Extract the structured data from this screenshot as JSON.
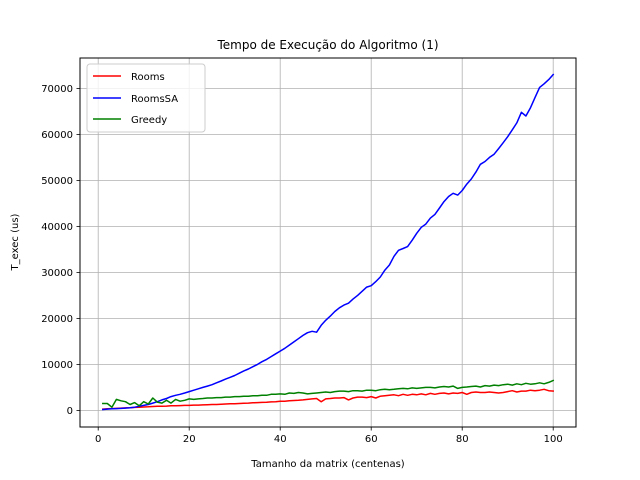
{
  "chart_data": {
    "type": "line",
    "title": "Tempo de Execução do Algoritmo (1)",
    "xlabel": "Tamanho da matrix (centenas)",
    "ylabel": "T_exec (us)",
    "xlim": [
      -4,
      105
    ],
    "ylim": [
      -3600,
      76600
    ],
    "xticks": [
      0,
      20,
      40,
      60,
      80,
      100
    ],
    "yticks": [
      0,
      10000,
      20000,
      30000,
      40000,
      50000,
      60000,
      70000
    ],
    "grid": true,
    "legend_position": "top-left",
    "x": [
      1,
      2,
      3,
      4,
      5,
      6,
      7,
      8,
      9,
      10,
      11,
      12,
      13,
      14,
      15,
      16,
      17,
      18,
      19,
      20,
      21,
      22,
      23,
      24,
      25,
      26,
      27,
      28,
      29,
      30,
      31,
      32,
      33,
      34,
      35,
      36,
      37,
      38,
      39,
      40,
      41,
      42,
      43,
      44,
      45,
      46,
      47,
      48,
      49,
      50,
      51,
      52,
      53,
      54,
      55,
      56,
      57,
      58,
      59,
      60,
      61,
      62,
      63,
      64,
      65,
      66,
      67,
      68,
      69,
      70,
      71,
      72,
      73,
      74,
      75,
      76,
      77,
      78,
      79,
      80,
      81,
      82,
      83,
      84,
      85,
      86,
      87,
      88,
      89,
      90,
      91,
      92,
      93,
      94,
      95,
      96,
      97,
      98,
      99,
      100
    ],
    "series": [
      {
        "name": "Rooms",
        "color": "#ff0000",
        "values": [
          300,
          350,
          400,
          450,
          500,
          550,
          600,
          650,
          700,
          750,
          800,
          850,
          900,
          900,
          950,
          1000,
          1000,
          1050,
          1100,
          1100,
          1150,
          1150,
          1200,
          1250,
          1300,
          1300,
          1350,
          1400,
          1450,
          1450,
          1500,
          1550,
          1600,
          1650,
          1700,
          1750,
          1800,
          1850,
          1900,
          2000,
          2000,
          2100,
          2150,
          2200,
          2300,
          2400,
          2500,
          2600,
          1900,
          2500,
          2600,
          2700,
          2700,
          2800,
          2300,
          2700,
          2900,
          2900,
          2800,
          3000,
          2700,
          3100,
          3200,
          3300,
          3400,
          3200,
          3500,
          3300,
          3500,
          3400,
          3600,
          3400,
          3700,
          3500,
          3700,
          3800,
          3600,
          3800,
          3700,
          3900,
          3500,
          3900,
          4000,
          3900,
          3900,
          4000,
          3900,
          3800,
          3900,
          4100,
          4300,
          4000,
          4200,
          4200,
          4400,
          4300,
          4400,
          4600,
          4300,
          4200
        ]
      },
      {
        "name": "RoomsSA",
        "color": "#0000ff",
        "values": [
          200,
          300,
          350,
          400,
          450,
          500,
          600,
          700,
          900,
          1100,
          1300,
          1600,
          1900,
          2300,
          2600,
          3000,
          3300,
          3500,
          3800,
          4100,
          4400,
          4700,
          5000,
          5300,
          5600,
          6000,
          6400,
          6800,
          7200,
          7600,
          8100,
          8600,
          9000,
          9500,
          10000,
          10600,
          11100,
          11700,
          12300,
          12900,
          13500,
          14200,
          14900,
          15600,
          16300,
          16900,
          17200,
          17000,
          18500,
          19600,
          20500,
          21500,
          22300,
          22900,
          23300,
          24200,
          25000,
          25900,
          26800,
          27100,
          28000,
          29000,
          30500,
          31600,
          33500,
          34800,
          35200,
          35600,
          37000,
          38500,
          39800,
          40500,
          41800,
          42600,
          44000,
          45400,
          46500,
          47200,
          46800,
          47800,
          49200,
          50300,
          51800,
          53500,
          54100,
          55000,
          55700,
          56900,
          58200,
          59500,
          61000,
          62500,
          64800,
          64000,
          65800,
          68000,
          70200,
          71000,
          71900,
          73000
        ]
      },
      {
        "name": "Greedy",
        "color": "#008000",
        "values": [
          1500,
          1500,
          700,
          2400,
          2100,
          1900,
          1300,
          1700,
          1000,
          1900,
          1400,
          2700,
          1800,
          1600,
          2200,
          1600,
          2400,
          2000,
          2200,
          2500,
          2400,
          2500,
          2600,
          2700,
          2700,
          2800,
          2800,
          2900,
          2900,
          3000,
          3000,
          3100,
          3100,
          3200,
          3200,
          3300,
          3300,
          3500,
          3500,
          3600,
          3500,
          3800,
          3700,
          3900,
          3800,
          3600,
          3700,
          3800,
          3900,
          4000,
          3900,
          4100,
          4200,
          4200,
          4100,
          4300,
          4300,
          4200,
          4400,
          4400,
          4300,
          4500,
          4600,
          4500,
          4600,
          4700,
          4800,
          4700,
          4900,
          4800,
          4900,
          5000,
          5000,
          4900,
          5100,
          5200,
          5100,
          5300,
          4800,
          5000,
          5100,
          5200,
          5300,
          5100,
          5400,
          5300,
          5500,
          5400,
          5600,
          5700,
          5500,
          5800,
          5600,
          5900,
          5700,
          5800,
          6000,
          5800,
          6100,
          6500
        ]
      }
    ]
  }
}
